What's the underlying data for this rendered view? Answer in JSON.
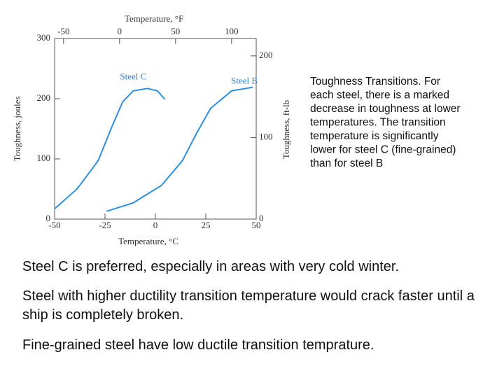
{
  "chart_data": {
    "type": "line",
    "xlabel": "Temperature, °C",
    "x2label": "Temperature, °F",
    "ylabel": "Toughness, joules",
    "y2label": "Toughness, ft-lb",
    "xlim": [
      -50,
      50
    ],
    "xticks": [
      -50,
      -25,
      0,
      25,
      50
    ],
    "x2lim": [
      -58,
      122
    ],
    "x2ticks": [
      -50,
      0,
      50,
      100
    ],
    "ylim": [
      0,
      300
    ],
    "yticks": [
      0,
      100,
      200,
      300
    ],
    "y2lim": [
      0,
      221.3
    ],
    "y2ticks": [
      0,
      100,
      200
    ],
    "series": [
      {
        "name": "Steel C",
        "color": "#2f8fe0",
        "x": [
          -50,
          -38.9,
          -28.4,
          -21.4,
          -16.2,
          -11,
          -4,
          1,
          4.7
        ],
        "values": [
          17,
          50,
          97,
          155,
          195,
          213,
          217,
          213,
          199
        ]
      },
      {
        "name": "Steel B",
        "color": "#2f8fe0",
        "x": [
          -24.2,
          -11,
          3,
          13.4,
          20.5,
          27.4,
          37.8,
          48.3
        ],
        "values": [
          13,
          27,
          56,
          97,
          143,
          184,
          213,
          219
        ]
      }
    ]
  },
  "caption": [
    "Toughness Transitions. For",
    "each steel, there is a marked",
    "decrease in toughness at lower",
    "temperatures. The transition",
    "temperature is significantly",
    "lower for steel C (fine-grained)",
    "than for steel B"
  ],
  "paragraphs": [
    "Steel C is preferred, especially in areas with very cold winter.",
    "Steel with higher ductility transition temperature would crack faster until a ship is completely broken.",
    "Fine-grained steel have low ductile transition temprature."
  ]
}
